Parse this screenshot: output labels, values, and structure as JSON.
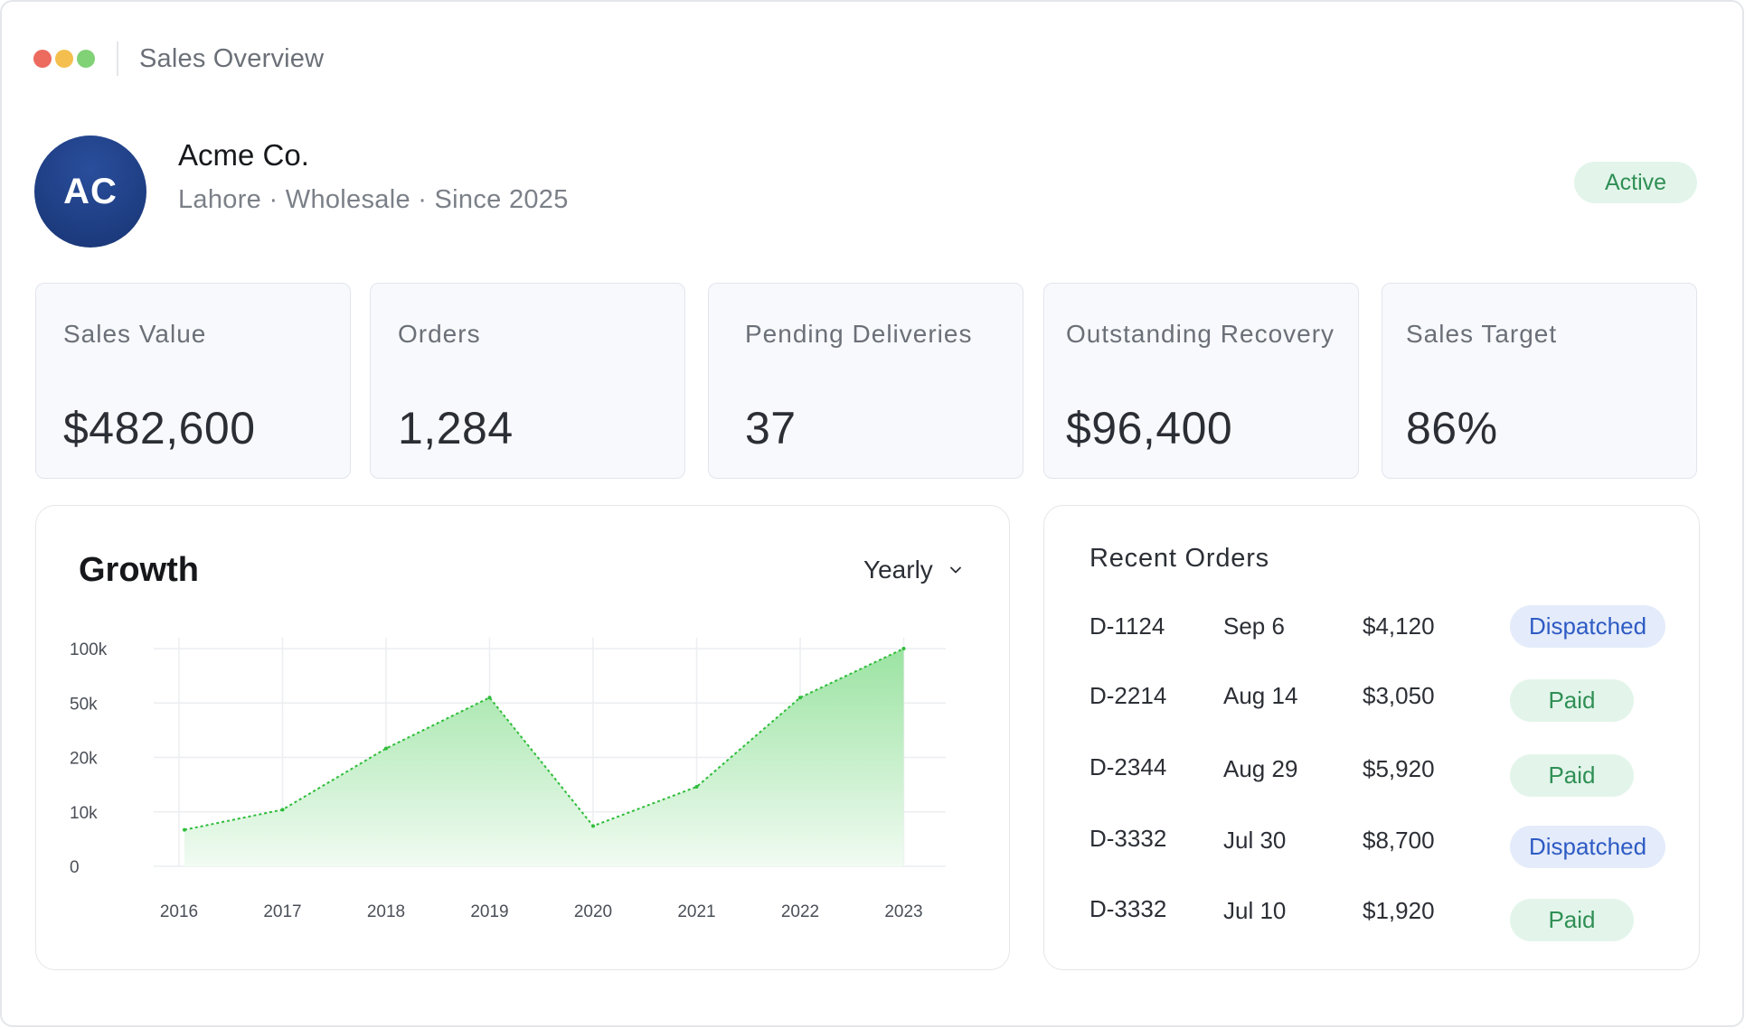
{
  "window": {
    "title": "Sales Overview"
  },
  "profile": {
    "initials": "AC",
    "name": "Acme Co.",
    "meta": "Lahore · Wholesale · Since 2025",
    "status": "Active"
  },
  "stats": [
    {
      "label": "Sales Value",
      "value": "$482,600"
    },
    {
      "label": "Orders",
      "value": "1,284"
    },
    {
      "label": "Pending Deliveries",
      "value": "37"
    },
    {
      "label": "Outstanding Recovery",
      "value": "$96,400"
    },
    {
      "label": "Sales Target",
      "value": "86%"
    }
  ],
  "growth": {
    "title": "Growth",
    "period": "Yearly"
  },
  "chart_data": {
    "type": "area",
    "title": "Growth",
    "x": [
      "2016",
      "2017",
      "2018",
      "2019",
      "2020",
      "2021",
      "2022",
      "2023"
    ],
    "y_ticks": [
      "100k",
      "50k",
      "20k",
      "10k",
      "0"
    ],
    "series": [
      {
        "values": [
          6700,
          10400,
          25000,
          55000,
          7400,
          14600,
          55000,
          100000
        ]
      }
    ],
    "ylim": [
      0,
      100000
    ],
    "grid": true,
    "line_style": "dotted",
    "colors": {
      "line": "#2ebd3a",
      "fill_top": "#9be3a2",
      "fill_bottom": "#f1fbf2",
      "grid": "#eceef1"
    }
  },
  "orders": {
    "title": "Recent Orders",
    "rows": [
      {
        "id": "D-1124",
        "date": "Sep 6",
        "amount": "$4,120",
        "status": "Dispatched"
      },
      {
        "id": "D-2214",
        "date": "Aug 14",
        "amount": "$3,050",
        "status": "Paid"
      },
      {
        "id": "D-2344",
        "date": "Aug 29",
        "amount": "$5,920",
        "status": "Paid"
      },
      {
        "id": "D-3332",
        "date": "Jul 30",
        "amount": "$8,700",
        "status": "Dispatched"
      },
      {
        "id": "D-3332",
        "date": "Jul 10",
        "amount": "$1,920",
        "status": "Paid"
      }
    ]
  },
  "colors": {
    "accent_green": "#2f8f55",
    "accent_blue": "#2d5bc4",
    "avatar_bg": "#1d3c80"
  }
}
